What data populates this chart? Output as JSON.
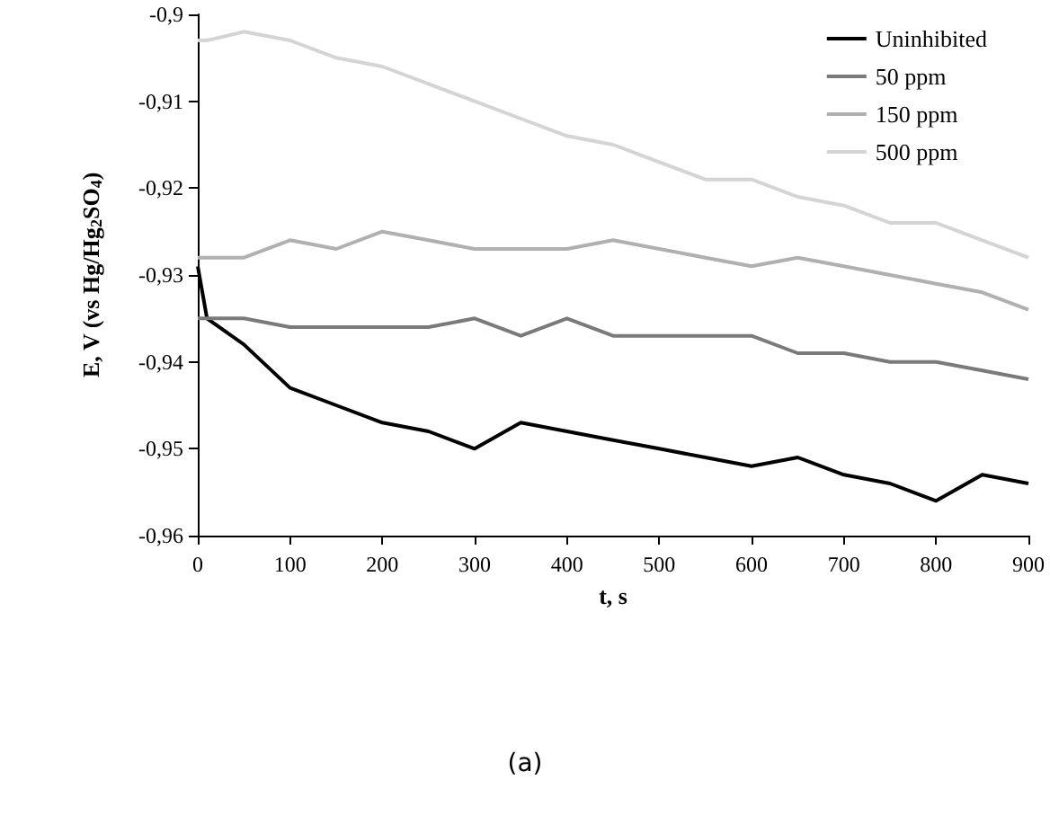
{
  "chart_data": {
    "type": "line",
    "xlabel": "t, s",
    "ylabel": "E, V (vs Hg/Hg$_{2}$SO$_{4}$)",
    "annotations": [
      "(a)"
    ],
    "x": [
      0,
      10,
      50,
      100,
      150,
      200,
      250,
      300,
      350,
      400,
      450,
      500,
      550,
      600,
      650,
      700,
      750,
      800,
      850,
      900
    ],
    "series": [
      {
        "name": "Uninhibited",
        "color": "#000000",
        "values": [
          -0.929,
          -0.935,
          -0.938,
          -0.943,
          -0.945,
          -0.947,
          -0.948,
          -0.95,
          -0.947,
          -0.948,
          -0.949,
          -0.95,
          -0.951,
          -0.952,
          -0.951,
          -0.953,
          -0.954,
          -0.956,
          -0.953,
          -0.954
        ]
      },
      {
        "name": "50 ppm",
        "color": "#7a7a7a",
        "values": [
          -0.935,
          -0.935,
          -0.935,
          -0.936,
          -0.936,
          -0.936,
          -0.936,
          -0.935,
          -0.937,
          -0.935,
          -0.937,
          -0.937,
          -0.937,
          -0.937,
          -0.939,
          -0.939,
          -0.94,
          -0.94,
          -0.941,
          -0.942
        ]
      },
      {
        "name": "150 ppm",
        "color": "#b0b0b0",
        "values": [
          -0.928,
          -0.928,
          -0.928,
          -0.926,
          -0.927,
          -0.925,
          -0.926,
          -0.927,
          -0.927,
          -0.927,
          -0.926,
          -0.927,
          -0.928,
          -0.929,
          -0.928,
          -0.929,
          -0.93,
          -0.931,
          -0.932,
          -0.934
        ]
      },
      {
        "name": "500 ppm",
        "color": "#d4d4d4",
        "values": [
          -0.903,
          -0.903,
          -0.902,
          -0.903,
          -0.905,
          -0.906,
          -0.908,
          -0.91,
          -0.912,
          -0.914,
          -0.915,
          -0.917,
          -0.919,
          -0.919,
          -0.921,
          -0.922,
          -0.924,
          -0.924,
          -0.926,
          -0.928
        ]
      }
    ],
    "xlim": [
      0,
      900
    ],
    "xticks": [
      0,
      100,
      200,
      300,
      400,
      500,
      600,
      700,
      800,
      900
    ],
    "ylim": [
      -0.96,
      -0.9
    ],
    "yticks": [
      {
        "value": -0.96,
        "label": "-0,96"
      },
      {
        "value": -0.95,
        "label": "-0,95"
      },
      {
        "value": -0.94,
        "label": "-0,94"
      },
      {
        "value": -0.93,
        "label": "-0,93"
      },
      {
        "value": -0.92,
        "label": "-0,92"
      },
      {
        "value": -0.91,
        "label": "-0,91"
      },
      {
        "value": -0.9,
        "label": "-0,9"
      }
    ],
    "grid": false,
    "legend": "top right",
    "marker": "none",
    "line_style": "solid"
  }
}
